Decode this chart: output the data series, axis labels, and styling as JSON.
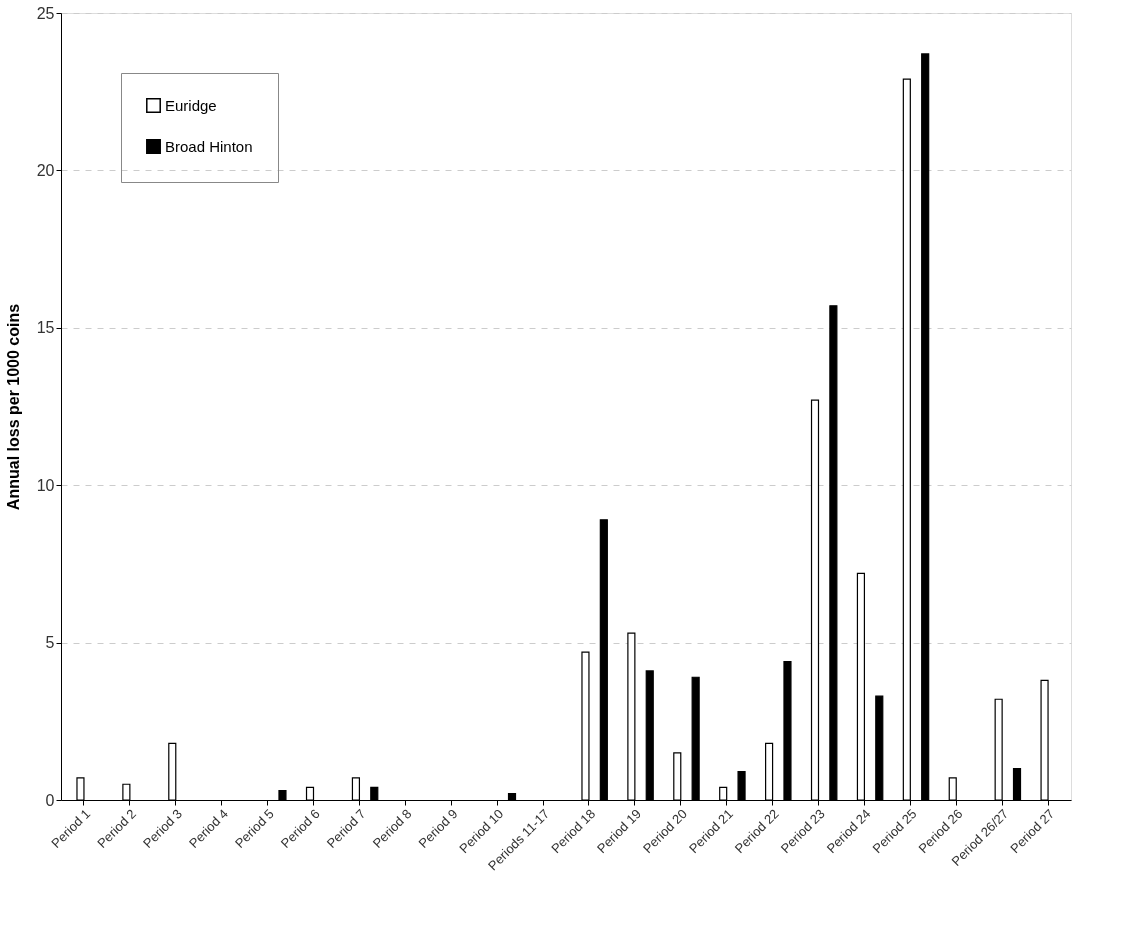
{
  "chart_data": {
    "type": "bar",
    "ylabel": "Annual loss per 1000 coins",
    "categories": [
      "Period 1",
      "Period 2",
      "Period 3",
      "Period 4",
      "Period 5",
      "Period 6",
      "Period 7",
      "Period 8",
      "Period 9",
      "Period 10",
      "Periods 11-17",
      "Period 18",
      "Period 19",
      "Period 20",
      "Period 21",
      "Period 22",
      "Period 23",
      "Period 24",
      "Period 25",
      "Period 26",
      "Period 26/27",
      "Period 27"
    ],
    "series": [
      {
        "name": "Euridge",
        "color": "#ffffff",
        "values": [
          0.7,
          0.5,
          1.8,
          0,
          0,
          0.4,
          0.7,
          0,
          0,
          0,
          0,
          4.7,
          5.3,
          1.5,
          0.4,
          1.8,
          12.7,
          7.2,
          22.9,
          0.7,
          3.2,
          3.8
        ]
      },
      {
        "name": "Broad Hinton",
        "color": "#000000",
        "values": [
          0,
          0,
          0,
          0,
          0.3,
          0,
          0.4,
          0,
          0,
          0.2,
          0,
          8.9,
          4.1,
          3.9,
          0.9,
          4.4,
          15.7,
          3.3,
          23.7,
          0,
          1.0,
          0
        ]
      }
    ],
    "ylim": [
      0,
      25
    ],
    "yticks": [
      0,
      5,
      10,
      15,
      20,
      25
    ],
    "grid": "y",
    "legend": "top left"
  }
}
